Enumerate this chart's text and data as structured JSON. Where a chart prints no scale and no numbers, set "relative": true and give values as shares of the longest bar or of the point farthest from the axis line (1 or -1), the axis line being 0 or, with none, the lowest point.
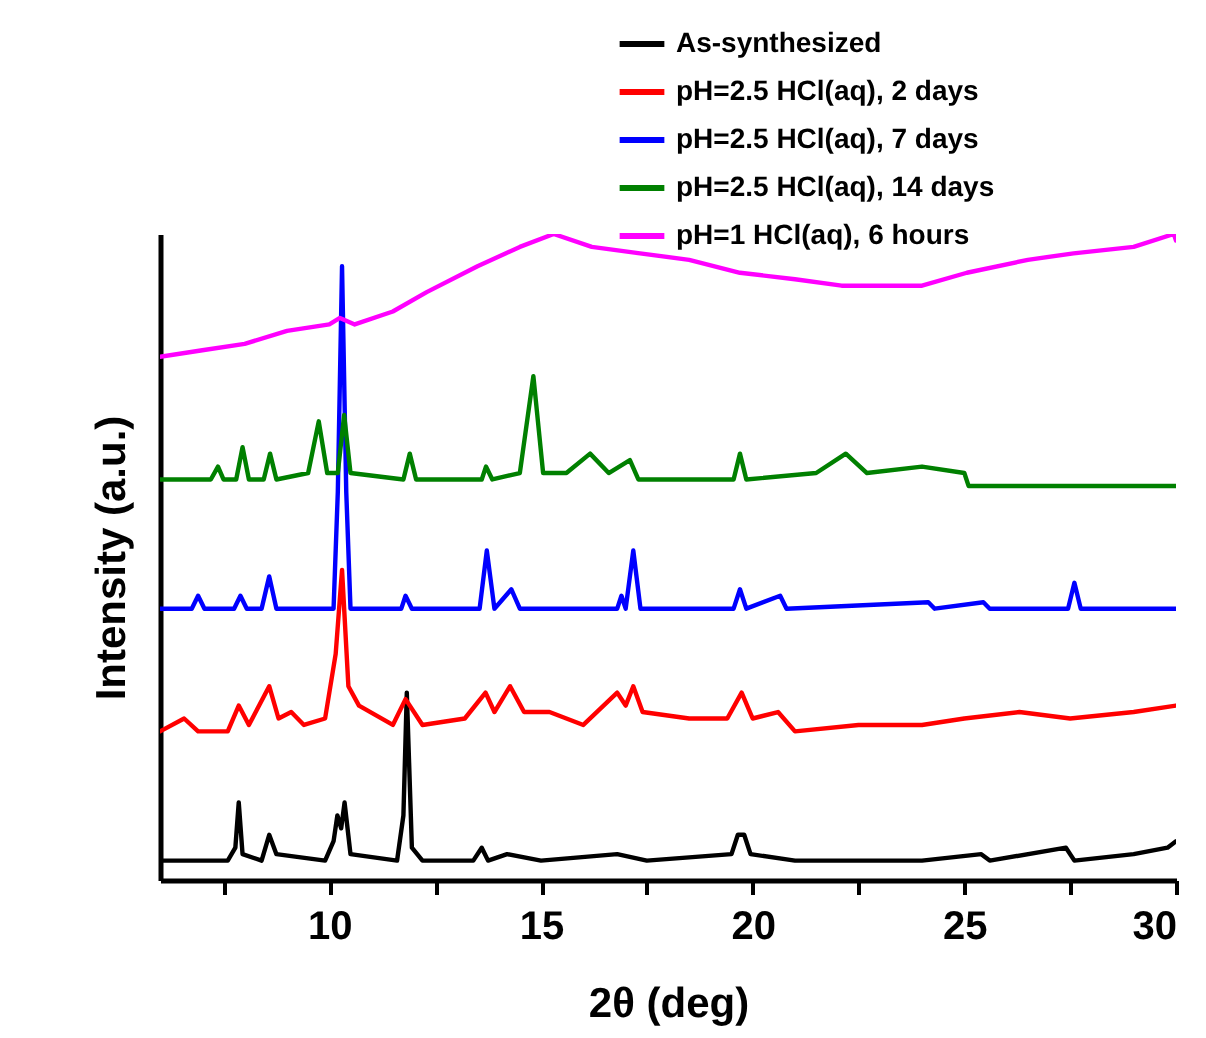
{
  "chart_data": {
    "type": "line",
    "relative": true,
    "xlabel": "2θ (deg)",
    "ylabel": "Intensity (a.u.)",
    "xlim": [
      6,
      30
    ],
    "xticks": [
      {
        "value": 7.5,
        "label": null
      },
      10,
      {
        "value": 12.5,
        "label": null
      },
      15,
      {
        "value": 17.5,
        "label": null
      },
      20,
      {
        "value": 22.5,
        "label": null
      },
      25,
      {
        "value": 27.5,
        "label": null
      },
      30
    ],
    "grid": false,
    "legend": "top right",
    "marker": "none",
    "line_style": "solid",
    "series": [
      {
        "name": "As-synthesized",
        "color": "#000000",
        "x": [
          6,
          7.6,
          7.78,
          7.86,
          7.95,
          8.4,
          8.58,
          8.75,
          9.9,
          10.1,
          10.19,
          10.28,
          10.36,
          10.5,
          11.6,
          11.75,
          11.83,
          11.95,
          12.2,
          13.4,
          13.6,
          13.75,
          14.2,
          15,
          16.8,
          17.5,
          19.5,
          19.65,
          19.8,
          19.95,
          21,
          24,
          25.4,
          25.6,
          27.4,
          27.6,
          29,
          29.8,
          30
        ],
        "values": [
          0.03,
          0.03,
          0.05,
          0.12,
          0.04,
          0.03,
          0.07,
          0.04,
          0.03,
          0.06,
          0.1,
          0.08,
          0.12,
          0.04,
          0.03,
          0.1,
          0.29,
          0.05,
          0.03,
          0.03,
          0.05,
          0.03,
          0.04,
          0.03,
          0.04,
          0.03,
          0.04,
          0.07,
          0.07,
          0.04,
          0.03,
          0.03,
          0.04,
          0.03,
          0.05,
          0.03,
          0.04,
          0.05,
          0.06
        ]
      },
      {
        "name": "pH=2.5 HCl(aq), 2 days",
        "color": "#ff0000",
        "x": [
          6,
          6.57,
          6.9,
          7.6,
          7.86,
          8.1,
          8.58,
          8.8,
          9.1,
          9.4,
          9.9,
          10.15,
          10.3,
          10.45,
          10.7,
          11.5,
          11.8,
          12.2,
          13.2,
          13.69,
          13.9,
          14.27,
          14.6,
          15.2,
          16,
          16.8,
          17,
          17.18,
          17.4,
          18.5,
          19.4,
          19.74,
          20,
          20.6,
          21,
          22.5,
          24,
          25,
          26.3,
          27.5,
          29,
          30
        ],
        "values": [
          0.23,
          0.25,
          0.23,
          0.23,
          0.27,
          0.24,
          0.3,
          0.25,
          0.26,
          0.24,
          0.25,
          0.35,
          0.48,
          0.3,
          0.27,
          0.24,
          0.28,
          0.24,
          0.25,
          0.29,
          0.26,
          0.3,
          0.26,
          0.26,
          0.24,
          0.29,
          0.27,
          0.3,
          0.26,
          0.25,
          0.25,
          0.29,
          0.25,
          0.26,
          0.23,
          0.24,
          0.24,
          0.25,
          0.26,
          0.25,
          0.26,
          0.27
        ]
      },
      {
        "name": "pH=2.5 HCl(aq), 7 days",
        "color": "#0000ff",
        "x": [
          6,
          6.75,
          6.9,
          7.05,
          7.75,
          7.9,
          8.05,
          8.4,
          8.58,
          8.75,
          10.1,
          10.2,
          10.3,
          10.4,
          10.5,
          11.7,
          11.8,
          11.95,
          13.55,
          13.72,
          13.9,
          14.3,
          14.5,
          16.8,
          16.9,
          17,
          17.18,
          17.35,
          19.55,
          19.7,
          19.85,
          20.65,
          20.8,
          24.15,
          24.3,
          25.45,
          25.6,
          27.45,
          27.6,
          27.75,
          30
        ],
        "values": [
          0.42,
          0.42,
          0.44,
          0.42,
          0.42,
          0.44,
          0.42,
          0.42,
          0.47,
          0.42,
          0.42,
          0.6,
          0.95,
          0.6,
          0.42,
          0.42,
          0.44,
          0.42,
          0.42,
          0.51,
          0.42,
          0.45,
          0.42,
          0.42,
          0.44,
          0.42,
          0.51,
          0.42,
          0.42,
          0.45,
          0.42,
          0.44,
          0.42,
          0.43,
          0.42,
          0.43,
          0.42,
          0.42,
          0.46,
          0.42,
          0.42
        ]
      },
      {
        "name": "pH=2.5 HCl(aq), 14 days",
        "color": "#008000",
        "x": [
          6,
          7.2,
          7.37,
          7.5,
          7.8,
          7.95,
          8.1,
          8.45,
          8.6,
          8.75,
          9.5,
          9.75,
          9.95,
          10.2,
          10.35,
          10.5,
          11.75,
          11.9,
          12.05,
          13.6,
          13.7,
          13.85,
          14.5,
          14.82,
          15.05,
          15.6,
          16.16,
          16.6,
          17.1,
          17.3,
          19.55,
          19.7,
          19.85,
          21.5,
          22.2,
          22.7,
          24,
          25,
          25.1,
          27,
          30
        ],
        "values": [
          0.62,
          0.62,
          0.64,
          0.62,
          0.62,
          0.67,
          0.62,
          0.62,
          0.66,
          0.62,
          0.63,
          0.71,
          0.63,
          0.63,
          0.72,
          0.63,
          0.62,
          0.66,
          0.62,
          0.62,
          0.64,
          0.62,
          0.63,
          0.78,
          0.63,
          0.63,
          0.66,
          0.63,
          0.65,
          0.62,
          0.62,
          0.66,
          0.62,
          0.63,
          0.66,
          0.63,
          0.64,
          0.63,
          0.61,
          0.61,
          0.61
        ]
      },
      {
        "name": "pH=1 HCl(aq), 6 hours",
        "color": "#ff00ff",
        "x": [
          6,
          7,
          8,
          9,
          10,
          10.25,
          10.6,
          11.5,
          12.3,
          13.5,
          14.5,
          15.3,
          16.2,
          17.34,
          18.5,
          19.7,
          21,
          22.1,
          24,
          25.06,
          26.5,
          27.58,
          29,
          29.95,
          30
        ],
        "values": [
          0.81,
          0.82,
          0.83,
          0.85,
          0.86,
          0.87,
          0.86,
          0.88,
          0.91,
          0.95,
          0.98,
          1,
          0.98,
          0.97,
          0.96,
          0.94,
          0.93,
          0.92,
          0.92,
          0.94,
          0.96,
          0.97,
          0.98,
          1,
          0.99
        ]
      }
    ]
  }
}
